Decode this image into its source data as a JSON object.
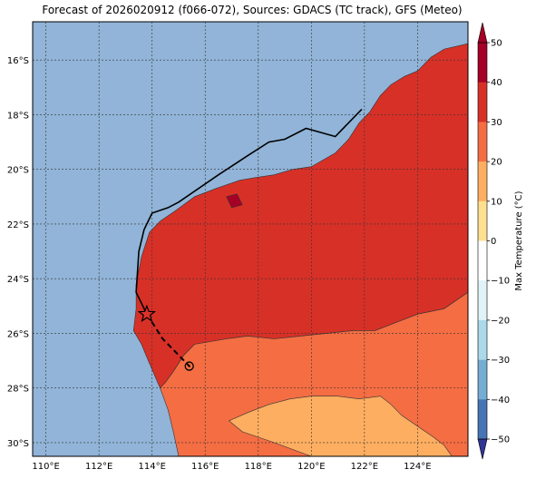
{
  "title": "Forecast of 2026020912 (f066-072), Sources: GDACS (TC track), GFS (Meteo)",
  "map": {
    "lon_range": [
      109.5,
      125.9
    ],
    "lat_range": [
      -30.5,
      -14.6
    ],
    "lon_ticks": [
      110,
      112,
      114,
      116,
      118,
      120,
      122,
      124
    ],
    "lon_tick_labels": [
      "110°E",
      "112°E",
      "114°E",
      "116°E",
      "118°E",
      "120°E",
      "122°E",
      "124°E"
    ],
    "lat_ticks": [
      -16,
      -18,
      -20,
      -22,
      -24,
      -26,
      -28,
      -30
    ],
    "lat_tick_labels": [
      "16°S",
      "18°S",
      "20°S",
      "22°S",
      "24°S",
      "26°S",
      "28°S",
      "30°S"
    ],
    "gridlines": true,
    "ocean_color": "#91b4d8"
  },
  "colorbar": {
    "label": "Max Temperature (°C)",
    "ticks": [
      50,
      40,
      30,
      20,
      10,
      0,
      -10,
      -20,
      -30,
      -40,
      -50
    ],
    "tick_labels": [
      "50",
      "40",
      "30",
      "20",
      "10",
      "0",
      "−10",
      "−20",
      "−30",
      "−40",
      "−50"
    ],
    "bands": [
      {
        "from": 40,
        "to": 50,
        "color": "#a50026"
      },
      {
        "from": 30,
        "to": 40,
        "color": "#d73027"
      },
      {
        "from": 20,
        "to": 30,
        "color": "#f46d43"
      },
      {
        "from": 10,
        "to": 20,
        "color": "#fdae61"
      },
      {
        "from": 0,
        "to": 10,
        "color": "#fee090"
      },
      {
        "from": -10,
        "to": 0,
        "color": "#fefefe"
      },
      {
        "from": -20,
        "to": -10,
        "color": "#e0f3f8"
      },
      {
        "from": -30,
        "to": -20,
        "color": "#abd9e9"
      },
      {
        "from": -40,
        "to": -30,
        "color": "#74add1"
      },
      {
        "from": -50,
        "to": -40,
        "color": "#4575b4"
      }
    ],
    "extend_top_color": "#a50026",
    "extend_bottom_color": "#313695"
  },
  "track": {
    "observed": [
      [
        121.9,
        -17.8
      ],
      [
        120.9,
        -18.8
      ],
      [
        119.8,
        -18.5
      ],
      [
        119.0,
        -18.9
      ],
      [
        118.4,
        -19.0
      ],
      [
        117.6,
        -19.5
      ],
      [
        116.5,
        -20.2
      ],
      [
        115.0,
        -21.2
      ],
      [
        114.6,
        -21.4
      ],
      [
        114.0,
        -21.6
      ],
      [
        113.7,
        -22.2
      ],
      [
        113.5,
        -23.0
      ],
      [
        113.4,
        -24.5
      ],
      [
        113.8,
        -25.3
      ]
    ],
    "forecast": [
      [
        113.8,
        -25.3
      ],
      [
        114.4,
        -26.2
      ],
      [
        115.0,
        -26.8
      ],
      [
        115.4,
        -27.2
      ]
    ],
    "current_position": [
      113.8,
      -25.3
    ],
    "forecast_position": [
      115.4,
      -27.2
    ]
  },
  "fields": {
    "zone_40plus": [
      [
        [
          116.8,
          -21.0
        ],
        [
          117.2,
          -20.9
        ],
        [
          117.4,
          -21.3
        ],
        [
          117.0,
          -21.4
        ]
      ]
    ],
    "zone_30": [
      [
        [
          113.4,
          -24.2
        ],
        [
          113.6,
          -23.2
        ],
        [
          113.9,
          -22.3
        ],
        [
          114.3,
          -21.9
        ],
        [
          114.9,
          -21.5
        ],
        [
          115.6,
          -21.0
        ],
        [
          116.4,
          -20.7
        ],
        [
          117.3,
          -20.4
        ],
        [
          117.9,
          -20.3
        ],
        [
          118.6,
          -20.2
        ],
        [
          119.3,
          -20.0
        ],
        [
          120.0,
          -19.9
        ],
        [
          120.9,
          -19.4
        ],
        [
          121.4,
          -18.9
        ],
        [
          121.8,
          -18.3
        ],
        [
          122.2,
          -17.9
        ],
        [
          122.6,
          -17.3
        ],
        [
          123.0,
          -16.9
        ],
        [
          123.5,
          -16.6
        ],
        [
          124.0,
          -16.4
        ],
        [
          124.5,
          -15.9
        ],
        [
          125.0,
          -15.6
        ],
        [
          125.9,
          -15.4
        ],
        [
          125.9,
          -24.5
        ],
        [
          125.0,
          -25.1
        ],
        [
          124.0,
          -25.3
        ],
        [
          123.2,
          -25.6
        ],
        [
          122.4,
          -25.9
        ],
        [
          121.6,
          -25.9
        ],
        [
          120.6,
          -26.0
        ],
        [
          119.6,
          -26.1
        ],
        [
          118.6,
          -26.2
        ],
        [
          117.6,
          -26.1
        ],
        [
          116.8,
          -26.2
        ],
        [
          116.2,
          -26.3
        ],
        [
          115.6,
          -26.4
        ],
        [
          115.2,
          -26.8
        ],
        [
          114.8,
          -27.4
        ],
        [
          114.5,
          -27.8
        ],
        [
          114.3,
          -28.0
        ],
        [
          113.9,
          -27.1
        ],
        [
          113.6,
          -26.4
        ],
        [
          113.3,
          -25.9
        ],
        [
          113.4,
          -25.1
        ]
      ]
    ],
    "zone_20": [
      [
        [
          114.3,
          -28.0
        ],
        [
          114.5,
          -27.8
        ],
        [
          114.8,
          -27.4
        ],
        [
          115.2,
          -26.8
        ],
        [
          115.6,
          -26.4
        ],
        [
          116.2,
          -26.3
        ],
        [
          116.8,
          -26.2
        ],
        [
          117.6,
          -26.1
        ],
        [
          118.6,
          -26.2
        ],
        [
          119.6,
          -26.1
        ],
        [
          120.6,
          -26.0
        ],
        [
          121.6,
          -25.9
        ],
        [
          122.4,
          -25.9
        ],
        [
          123.2,
          -25.6
        ],
        [
          124.0,
          -25.3
        ],
        [
          125.0,
          -25.1
        ],
        [
          125.9,
          -24.5
        ],
        [
          125.9,
          -30.5
        ],
        [
          115.0,
          -30.5
        ],
        [
          114.8,
          -29.6
        ],
        [
          114.6,
          -28.8
        ]
      ]
    ],
    "zone_10": [
      [
        [
          116.9,
          -29.2
        ],
        [
          117.6,
          -28.9
        ],
        [
          118.4,
          -28.6
        ],
        [
          119.2,
          -28.4
        ],
        [
          120.0,
          -28.3
        ],
        [
          121.0,
          -28.3
        ],
        [
          121.8,
          -28.4
        ],
        [
          122.6,
          -28.3
        ],
        [
          123.0,
          -28.6
        ],
        [
          123.4,
          -29.0
        ],
        [
          124.0,
          -29.4
        ],
        [
          124.6,
          -29.8
        ],
        [
          125.0,
          -30.1
        ],
        [
          125.3,
          -30.5
        ],
        [
          120.0,
          -30.5
        ],
        [
          118.6,
          -30.0
        ],
        [
          117.4,
          -29.6
        ]
      ]
    ]
  }
}
